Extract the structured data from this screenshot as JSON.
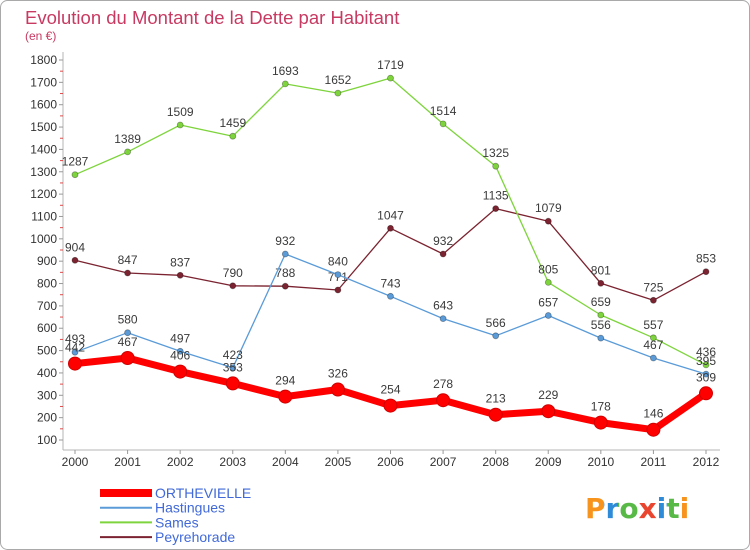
{
  "chart_data": {
    "type": "line",
    "title": "Evolution du Montant de la Dette par Habitant",
    "subtitle": "(en €)",
    "xlabel": "",
    "ylabel": "",
    "x": [
      "2000",
      "2001",
      "2002",
      "2003",
      "2004",
      "2005",
      "2006",
      "2007",
      "2008",
      "2009",
      "2010",
      "2011",
      "2012"
    ],
    "ylim": [
      100,
      1800
    ],
    "yticks": [
      100,
      200,
      300,
      400,
      500,
      600,
      700,
      800,
      900,
      1000,
      1100,
      1200,
      1300,
      1400,
      1500,
      1600,
      1700,
      1800
    ],
    "grid": false,
    "legend": "bottom-left",
    "data_labels": true,
    "series": [
      {
        "name": "ORTHEVIELLE",
        "color": "#ff0000",
        "values": [
          442,
          467,
          406,
          353,
          294,
          326,
          254,
          278,
          213,
          229,
          178,
          146,
          309
        ]
      },
      {
        "name": "Hastingues",
        "color": "#5a9bd8",
        "values": [
          493,
          580,
          497,
          423,
          932,
          840,
          743,
          643,
          566,
          657,
          556,
          467,
          395
        ]
      },
      {
        "name": "Sames",
        "color": "#7ed43c",
        "values": [
          1287,
          1389,
          1509,
          1459,
          1693,
          1652,
          1719,
          1514,
          1325,
          805,
          659,
          557,
          436
        ]
      },
      {
        "name": "Peyrehorade",
        "color": "#7b2330",
        "values": [
          904,
          847,
          837,
          790,
          788,
          771,
          1047,
          932,
          1135,
          1079,
          801,
          725,
          853
        ]
      }
    ]
  },
  "colors": {
    "title": "#c83a62",
    "legend_text": "#4169d8",
    "axis": "#b4b4b4"
  },
  "logo": {
    "text": "Proxiti",
    "colors": [
      "#f7941d",
      "#2e8bd8",
      "#58b947",
      "#e9452f",
      "#2e8bd8",
      "#58b947",
      "#f7941d"
    ]
  }
}
